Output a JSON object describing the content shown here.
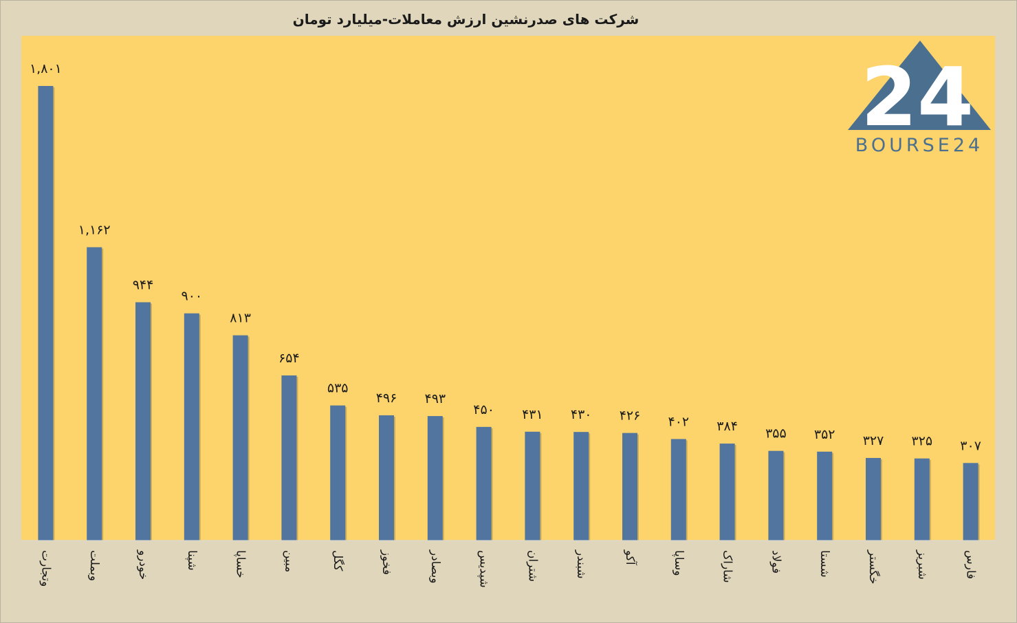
{
  "chart_data": {
    "type": "bar",
    "title": "شرکت های صدرنشین ارزش معاملات-میلیارد تومان",
    "categories": [
      "وتجارت",
      "وبملت",
      "خودرو",
      "شپنا",
      "خساپا",
      "مبین",
      "کگل",
      "فخوز",
      "وبصادر",
      "شپدیس",
      "شتران",
      "شبندر",
      "آکو",
      "وساپا",
      "شاراک",
      "فولاد",
      "شستا",
      "خگستر",
      "شبریز",
      "فارس"
    ],
    "values": [
      1801,
      1162,
      944,
      900,
      813,
      654,
      535,
      496,
      493,
      450,
      431,
      430,
      426,
      402,
      384,
      355,
      352,
      327,
      325,
      307
    ],
    "value_labels": [
      "۱,۸۰۱",
      "۱,۱۶۲",
      "۹۴۴",
      "۹۰۰",
      "۸۱۳",
      "۶۵۴",
      "۵۳۵",
      "۴۹۶",
      "۴۹۳",
      "۴۵۰",
      "۴۳۱",
      "۴۳۰",
      "۴۲۶",
      "۴۰۲",
      "۳۸۴",
      "۳۵۵",
      "۳۵۲",
      "۳۲۷",
      "۳۲۵",
      "۳۰۷"
    ],
    "ylim": [
      0,
      1801
    ],
    "grid": false,
    "legend": "none",
    "colors": {
      "bar": "#51759f",
      "plot_background": "#fcd46b",
      "page_background": "#e0d6bc"
    }
  },
  "logo": {
    "text": "BOURSE24",
    "mark": "24",
    "color": "#4b6f8f",
    "mark_color": "#ffffff"
  }
}
